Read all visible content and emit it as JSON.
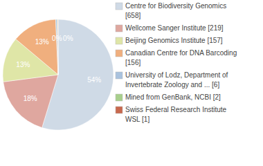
{
  "chart_data": {
    "type": "pie",
    "categories": [
      "Centre for Biodiversity Genomics [658]",
      "Wellcome Sanger Institute [219]",
      "Beijing Genomics Institute [157]",
      "Canadian Centre for DNA Barcoding [156]",
      "University of Lodz, Department of Invertebrate Zoology and ... [6]",
      "Mined from GenBank, NCBI [2]",
      "Swiss Federal Research Institute WSL [1]"
    ],
    "values": [
      54,
      18,
      13,
      13,
      0.4,
      0.2,
      0.1
    ],
    "value_labels": [
      "54%",
      "18%",
      "13%",
      "13%",
      "0%",
      "0%",
      null
    ],
    "colors": [
      "#cfdae6",
      "#dfa79f",
      "#dfe6a7",
      "#f0af7e",
      "#a9c2de",
      "#a8cf8c",
      "#c8694e"
    ],
    "data_labels": true,
    "legend": "right"
  }
}
